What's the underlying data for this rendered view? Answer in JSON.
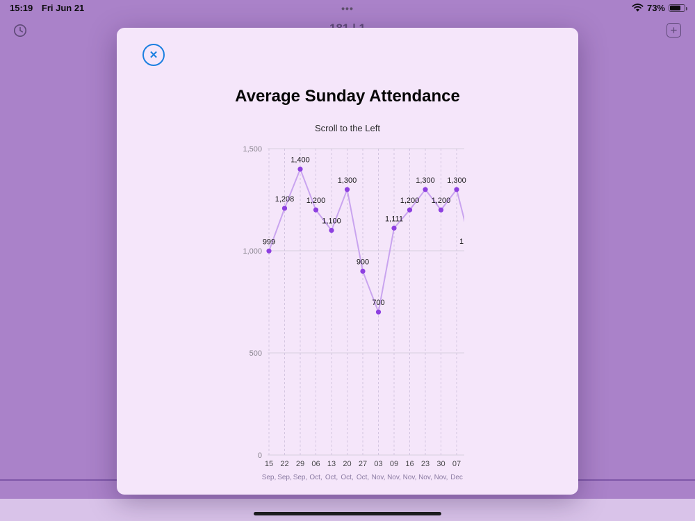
{
  "status_bar": {
    "time": "15:19",
    "date": "Fri Jun 21",
    "center_dots": "•••",
    "battery_percent": "73%",
    "battery_level": 0.73
  },
  "background": {
    "partial_header_text": "181 | 1",
    "plus_symbol": "+"
  },
  "modal": {
    "close_symbol": "✕",
    "title": "Average Sunday Attendance",
    "subtitle": "Scroll to the Left"
  },
  "chart_data": {
    "type": "line",
    "title": "Average Sunday Attendance",
    "categories": [
      "15 Sep",
      "22 Sep",
      "29 Sep",
      "06 Oct",
      "13 Oct",
      "20 Oct",
      "27 Oct",
      "03 Nov",
      "09 Nov",
      "16 Nov",
      "23 Nov",
      "30 Nov",
      "07 Dec"
    ],
    "x_day_labels": [
      "15",
      "22",
      "29",
      "06",
      "13",
      "20",
      "27",
      "03",
      "09",
      "16",
      "23",
      "30",
      "07"
    ],
    "x_month_labels": [
      "Sep,",
      "Sep,",
      "Sep,",
      "Oct,",
      "Oct,",
      "Oct,",
      "Oct,",
      "Nov,",
      "Nov,",
      "Nov,",
      "Nov,",
      "Nov,",
      "Dec"
    ],
    "values": [
      999,
      1208,
      1400,
      1200,
      1100,
      1300,
      900,
      700,
      1111,
      1200,
      1300,
      1200,
      1300
    ],
    "point_labels": [
      "999",
      "1,208",
      "1,400",
      "1,200",
      "1,100",
      "1,300",
      "900",
      "700",
      "1,111",
      "1,200",
      "1,300",
      "1,200",
      "1,300"
    ],
    "partial_next_value": 1000,
    "partial_next_label": "1",
    "y_ticks": [
      0,
      500,
      1000,
      1500
    ],
    "y_tick_labels": [
      "0",
      "500",
      "1,000",
      "1,500"
    ],
    "ylim": [
      0,
      1500
    ],
    "grid": true,
    "legend": false,
    "line_color": "#c9a4ef",
    "point_color": "#8d3fe0"
  }
}
